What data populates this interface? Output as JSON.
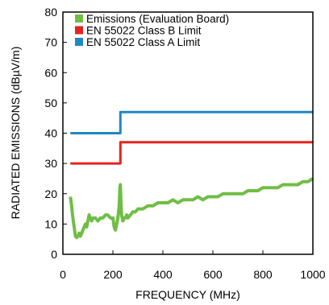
{
  "chart_data": {
    "type": "line",
    "title": "",
    "xlabel": "FREQUENCY (MHz)",
    "ylabel": "RADIATED EMISSIONS (dBµV/m)",
    "xlim": [
      0,
      1000
    ],
    "ylim": [
      0,
      80
    ],
    "x_ticks": [
      "0",
      "200",
      "400",
      "600",
      "800",
      "1000"
    ],
    "y_ticks": [
      "0",
      "10",
      "20",
      "30",
      "40",
      "50",
      "60",
      "70",
      "80"
    ],
    "grid": false,
    "legend_position": "top",
    "series": [
      {
        "name": "Emissions (Evaluation Board)",
        "color": "#6fbe44",
        "x": [
          30,
          35,
          40,
          45,
          50,
          55,
          60,
          65,
          70,
          75,
          80,
          85,
          90,
          95,
          100,
          105,
          110,
          115,
          120,
          130,
          140,
          150,
          160,
          170,
          180,
          190,
          200,
          205,
          210,
          215,
          220,
          225,
          228,
          230,
          232,
          235,
          240,
          245,
          250,
          255,
          260,
          270,
          280,
          290,
          300,
          320,
          340,
          360,
          380,
          400,
          420,
          440,
          460,
          480,
          500,
          520,
          540,
          560,
          580,
          600,
          620,
          640,
          660,
          680,
          700,
          720,
          740,
          760,
          780,
          800,
          820,
          840,
          860,
          880,
          900,
          920,
          940,
          960,
          980,
          1000
        ],
        "values": [
          19,
          16,
          12,
          9,
          6,
          5.5,
          6,
          7,
          6,
          7,
          8,
          9,
          10,
          9,
          11,
          13,
          12,
          11,
          12,
          12,
          11,
          12,
          12,
          13,
          13,
          12,
          12,
          9,
          8,
          10,
          12,
          16,
          22,
          23,
          18,
          13,
          11,
          12,
          12,
          13,
          12,
          13,
          14,
          14,
          15,
          15,
          16,
          16,
          17,
          17,
          17,
          18,
          17,
          18,
          18,
          18,
          19,
          18,
          19,
          19,
          19,
          20,
          20,
          20,
          20,
          20,
          21,
          21,
          21,
          22,
          22,
          22,
          22,
          23,
          23,
          23,
          23,
          24,
          24,
          25
        ]
      },
      {
        "name": "EN 55022 Class B Limit",
        "color": "#e8231f",
        "x": [
          30,
          230,
          230,
          1000
        ],
        "values": [
          30,
          30,
          37,
          37
        ]
      },
      {
        "name": "EN 55022 Class A Limit",
        "color": "#1f88c0",
        "x": [
          30,
          230,
          230,
          1000
        ],
        "values": [
          40,
          40,
          47,
          47
        ]
      }
    ]
  }
}
